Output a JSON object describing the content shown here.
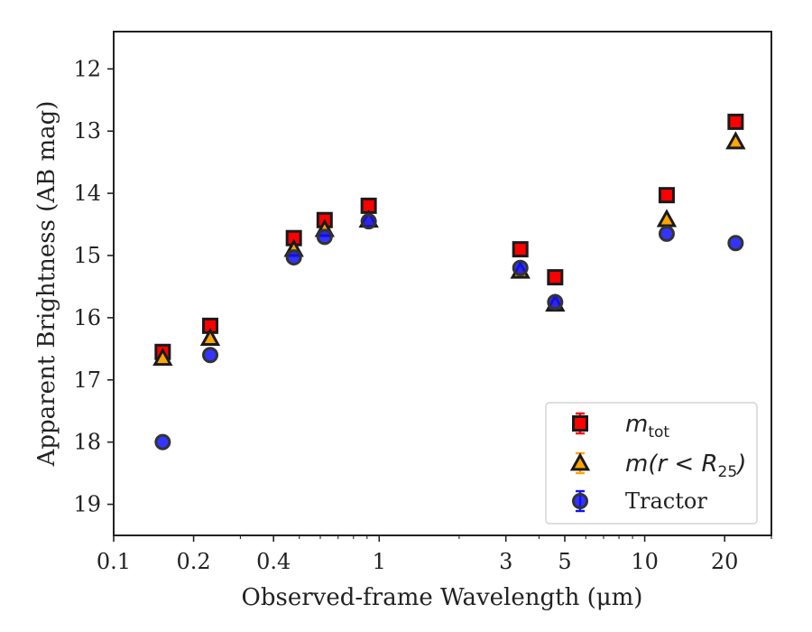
{
  "chart_data": {
    "type": "scatter",
    "xlabel": "Observed-frame Wavelength (μm)",
    "ylabel": "Apparent Brightness (AB mag)",
    "x_scale": "log",
    "xlim": [
      0.1,
      30
    ],
    "ylim": [
      19.5,
      11.4
    ],
    "y_inverted": true,
    "x_ticks": [
      0.1,
      0.2,
      0.4,
      1,
      3,
      5,
      10,
      20
    ],
    "x_tick_labels": [
      "0.1",
      "0.2",
      "0.4",
      "1",
      "3",
      "5",
      "10",
      "20"
    ],
    "y_ticks": [
      12,
      13,
      14,
      15,
      16,
      17,
      18,
      19
    ],
    "y_tick_labels": [
      "12",
      "13",
      "14",
      "15",
      "16",
      "17",
      "18",
      "19"
    ],
    "grid": false,
    "legend_position": "lower-right",
    "series": [
      {
        "name_parts": [
          "m",
          "tot",
          ""
        ],
        "marker": "square",
        "color": "#ff0000",
        "edge_color": "#1a1a1a",
        "errorbar_color": "#ff0000",
        "x": [
          0.153,
          0.231,
          0.477,
          0.623,
          0.913,
          3.4,
          4.6,
          12.1,
          22.0
        ],
        "y": [
          16.55,
          16.13,
          14.72,
          14.43,
          14.2,
          14.9,
          15.35,
          14.03,
          12.85
        ]
      },
      {
        "name_parts": [
          "m(r < R",
          "25",
          ")"
        ],
        "marker": "triangle",
        "color": "#ffa500",
        "edge_color": "#1a1a1a",
        "errorbar_color": "#ffa500",
        "x": [
          0.153,
          0.231,
          0.477,
          0.623,
          0.913,
          3.4,
          4.6,
          12.1,
          22.0
        ],
        "y": [
          16.65,
          16.33,
          14.9,
          14.58,
          14.43,
          15.25,
          15.78,
          14.42,
          13.17
        ]
      },
      {
        "name": "Tractor",
        "marker": "circle",
        "color": "#1010ff",
        "edge_color": "#333333",
        "errorbar_color": "#1010ff",
        "x": [
          0.153,
          0.231,
          0.477,
          0.623,
          0.913,
          3.4,
          4.6,
          12.1,
          22.0
        ],
        "y": [
          18.0,
          16.6,
          15.03,
          14.7,
          14.45,
          15.2,
          15.75,
          14.65,
          14.8
        ]
      }
    ]
  }
}
